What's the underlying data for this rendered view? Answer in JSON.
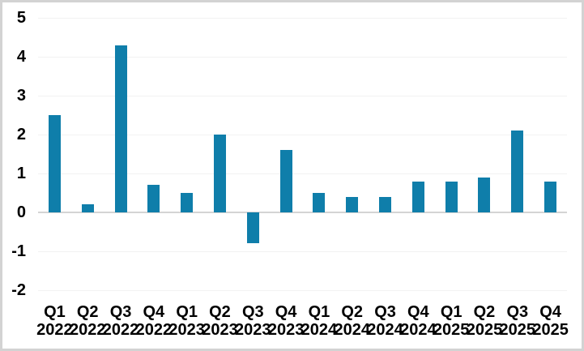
{
  "chart_data": {
    "type": "bar",
    "title": "",
    "xlabel": "",
    "ylabel": "",
    "categories": [
      {
        "quarter": "Q1",
        "year": "2022"
      },
      {
        "quarter": "Q2",
        "year": "2022"
      },
      {
        "quarter": "Q3",
        "year": "2022"
      },
      {
        "quarter": "Q4",
        "year": "2022"
      },
      {
        "quarter": "Q1",
        "year": "2023"
      },
      {
        "quarter": "Q2",
        "year": "2023"
      },
      {
        "quarter": "Q3",
        "year": "2023"
      },
      {
        "quarter": "Q4",
        "year": "2023"
      },
      {
        "quarter": "Q1",
        "year": "2024"
      },
      {
        "quarter": "Q2",
        "year": "2024"
      },
      {
        "quarter": "Q3",
        "year": "2024"
      },
      {
        "quarter": "Q4",
        "year": "2024"
      },
      {
        "quarter": "Q1",
        "year": "2025"
      },
      {
        "quarter": "Q2",
        "year": "2025"
      },
      {
        "quarter": "Q3",
        "year": "2025"
      },
      {
        "quarter": "Q4",
        "year": "2025"
      }
    ],
    "values": [
      2.5,
      0.2,
      4.3,
      0.7,
      0.5,
      2.0,
      -0.8,
      1.6,
      0.5,
      0.4,
      0.4,
      0.8,
      0.8,
      0.9,
      2.1,
      0.8
    ],
    "ylim": [
      -2,
      5
    ],
    "yticks": [
      5,
      4,
      3,
      2,
      1,
      0,
      -1,
      -2
    ],
    "grid": "horizontal",
    "legend_position": "none",
    "colors": {
      "bar": "#0F7EAA",
      "gridline": "#F2F2F2",
      "zero_line": "#D4D4D4",
      "tick_text": "#000000",
      "background": "#FFFFFF",
      "frame_border": "#D3D3D3"
    }
  }
}
